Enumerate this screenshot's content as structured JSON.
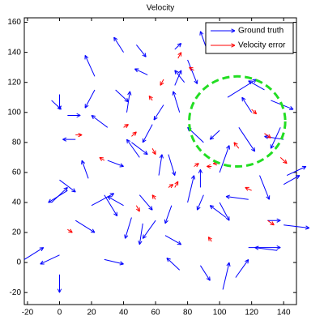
{
  "chart_data": {
    "type": "quiver",
    "title": "Velocity",
    "xlim": [
      -22,
      148
    ],
    "ylim": [
      -28,
      163
    ],
    "xticks": [
      -20,
      0,
      20,
      40,
      60,
      80,
      100,
      120,
      140
    ],
    "yticks": [
      -20,
      0,
      20,
      40,
      60,
      80,
      100,
      120,
      140,
      160
    ],
    "legend": "upper right",
    "series": [
      {
        "name": "Ground truth",
        "color": "#0000ff",
        "x": [
          0,
          -22,
          0,
          28,
          45,
          52,
          60,
          66,
          75,
          88,
          102,
          110,
          118,
          136,
          140,
          130,
          118,
          125,
          140,
          142,
          104,
          100,
          90,
          80,
          88,
          70,
          50,
          40,
          28,
          10,
          5,
          -5,
          0,
          18,
          20,
          30,
          45,
          50,
          62,
          68,
          58,
          65,
          72,
          75,
          80,
          90,
          100,
          105,
          120,
          128,
          132,
          138,
          140,
          112,
          100,
          22,
          22,
          40,
          48,
          35,
          55,
          0,
          -5,
          10,
          5,
          30,
          42,
          72,
          78,
          92
        ],
        "y": [
          -8,
          2,
          5,
          2,
          30,
          26,
          28,
          18,
          -5,
          -2,
          -18,
          -10,
          10,
          8,
          25,
          28,
          42,
          58,
          52,
          58,
          30,
          40,
          45,
          40,
          50,
          38,
          45,
          38,
          45,
          28,
          48,
          40,
          55,
          56,
          38,
          68,
          80,
          70,
          58,
          72,
          92,
          105,
          118,
          100,
          135,
          80,
          60,
          110,
          100,
          115,
          108,
          90,
          82,
          90,
          88,
          124,
          115,
          140,
          145,
          115,
          125,
          112,
          108,
          82,
          98,
          90,
          100,
          142,
          120,
          142
        ],
        "u": [
          0,
          12,
          -12,
          12,
          -4,
          -2,
          -8,
          10,
          -8,
          6,
          4,
          8,
          20,
          -14,
          16,
          8,
          -14,
          6,
          10,
          12,
          -10,
          6,
          -4,
          4,
          0,
          -4,
          8,
          -10,
          8,
          12,
          -12,
          10,
          10,
          -4,
          14,
          10,
          10,
          -8,
          2,
          4,
          -6,
          -6,
          4,
          -4,
          6,
          -10,
          6,
          18,
          -6,
          -10,
          14,
          -6,
          -12,
          10,
          -6,
          -6,
          -6,
          -6,
          6,
          8,
          -8,
          0,
          6,
          -8,
          8,
          -10,
          2,
          4,
          -6,
          -4
        ],
        "v": [
          -12,
          8,
          -6,
          -3,
          -14,
          -14,
          -12,
          -6,
          8,
          -10,
          18,
          12,
          0,
          2,
          -2,
          0,
          2,
          -16,
          6,
          6,
          8,
          -12,
          -10,
          18,
          12,
          -12,
          -10,
          6,
          -14,
          -8,
          -8,
          10,
          -8,
          12,
          8,
          -4,
          -8,
          12,
          14,
          -14,
          -12,
          -10,
          10,
          14,
          -16,
          10,
          18,
          12,
          10,
          6,
          -6,
          -14,
          2,
          -16,
          -6,
          14,
          -12,
          10,
          -8,
          -8,
          4,
          -10,
          -6,
          0,
          0,
          8,
          14,
          4,
          8,
          12
        ]
      },
      {
        "name": "Velocity error",
        "color": "#ff0000",
        "x": [
          72,
          60,
          45,
          58,
          100,
          84,
          95,
          138,
          128,
          112,
          120,
          58,
          65,
          74,
          48,
          28,
          68,
          130,
          95,
          84,
          40,
          10,
          5,
          120
        ],
        "y": [
          50,
          42,
          84,
          76,
          66,
          64,
          64,
          70,
          86,
          76,
          102,
          108,
          122,
          136,
          38,
          68,
          50,
          28,
          14,
          128,
          90,
          85,
          22,
          48
        ],
        "u": [
          2,
          -2,
          3,
          2,
          -4,
          3,
          -3,
          4,
          4,
          -3,
          3,
          -2,
          -2,
          2,
          2,
          -3,
          3,
          4,
          -2,
          -3,
          3,
          4,
          3,
          -4
        ],
        "v": [
          4,
          3,
          3,
          -4,
          0,
          2,
          0,
          -4,
          -3,
          4,
          -3,
          3,
          -4,
          4,
          -4,
          2,
          2,
          -3,
          3,
          2,
          2,
          0,
          -2,
          2
        ]
      }
    ],
    "annotation": {
      "shape": "circle",
      "center": [
        111,
        94
      ],
      "radius": 30,
      "color": "#22dd22"
    }
  }
}
